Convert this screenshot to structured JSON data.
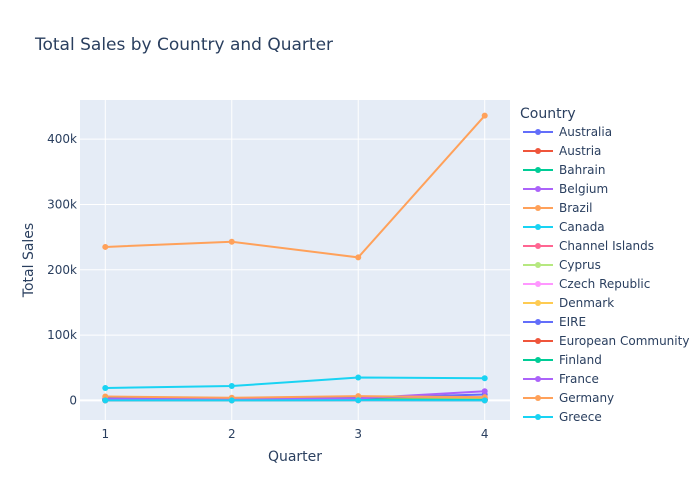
{
  "chart_data": {
    "type": "line",
    "title": "Total Sales by Country and Quarter",
    "xlabel": "Quarter",
    "ylabel": "Total Sales",
    "x": [
      1,
      2,
      3,
      4
    ],
    "x_tick_labels": [
      "1",
      "2",
      "3",
      "4"
    ],
    "xlim": [
      0.8,
      4.2
    ],
    "ylim": [
      -30000,
      460000
    ],
    "y_ticks": [
      0,
      100000,
      200000,
      300000,
      400000
    ],
    "y_tick_labels": [
      "0",
      "100k",
      "200k",
      "300k",
      "400k"
    ],
    "grid": true,
    "legend_title": "Country",
    "legend_placement": "right",
    "series": [
      {
        "name": "Australia",
        "color": "#636efa",
        "values": [
          1000,
          500,
          1500,
          2000
        ]
      },
      {
        "name": "Austria",
        "color": "#EF553B",
        "values": [
          800,
          1200,
          700,
          1500
        ]
      },
      {
        "name": "Bahrain",
        "color": "#00cc96",
        "values": [
          0,
          0,
          300,
          0
        ]
      },
      {
        "name": "Belgium",
        "color": "#ab63fa",
        "values": [
          1500,
          2000,
          2500,
          4000
        ]
      },
      {
        "name": "Brazil",
        "color": "#FFA15A",
        "values": [
          235000,
          243000,
          219000,
          436000
        ]
      },
      {
        "name": "Canada",
        "color": "#19d3f3",
        "values": [
          19000,
          22000,
          35000,
          34000
        ]
      },
      {
        "name": "Channel Islands",
        "color": "#FF6692",
        "values": [
          1000,
          800,
          1500,
          1200
        ]
      },
      {
        "name": "Cyprus",
        "color": "#B6E880",
        "values": [
          500,
          300,
          800,
          400
        ]
      },
      {
        "name": "Czech Republic",
        "color": "#FF97FF",
        "values": [
          0,
          200,
          0,
          100
        ]
      },
      {
        "name": "Denmark",
        "color": "#FECB52",
        "values": [
          1500,
          1000,
          2000,
          3000
        ]
      },
      {
        "name": "EIRE",
        "color": "#636efa",
        "values": [
          3000,
          2500,
          4000,
          9000
        ]
      },
      {
        "name": "European Community",
        "color": "#EF553B",
        "values": [
          0,
          300,
          500,
          200
        ]
      },
      {
        "name": "Finland",
        "color": "#00cc96",
        "values": [
          800,
          1200,
          1800,
          1000
        ]
      },
      {
        "name": "France",
        "color": "#ab63fa",
        "values": [
          2000,
          1500,
          3000,
          14000
        ]
      },
      {
        "name": "Germany",
        "color": "#FFA15A",
        "values": [
          6000,
          4000,
          6500,
          5000
        ]
      },
      {
        "name": "Greece",
        "color": "#19d3f3",
        "values": [
          0,
          0,
          200,
          100
        ]
      }
    ]
  }
}
